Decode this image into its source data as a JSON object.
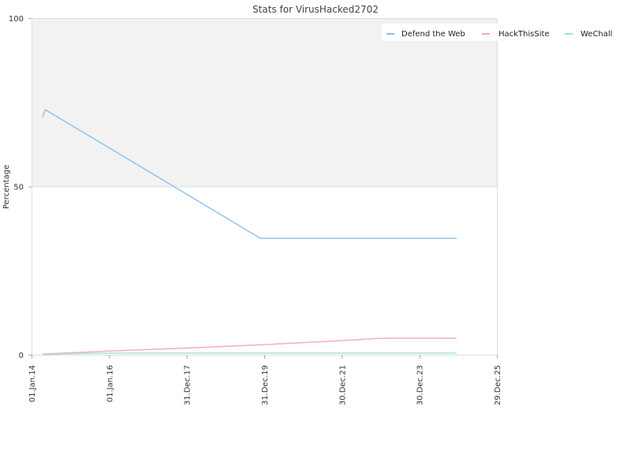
{
  "chart_data": {
    "type": "line",
    "title": "Stats for VirusHacked2702",
    "xlabel": "",
    "ylabel": "Percentage",
    "ylim": [
      0,
      100
    ],
    "yticks": [
      "0",
      "50",
      "100"
    ],
    "xlim": [
      "2014-01-01",
      "2025-12-29"
    ],
    "xticks": [
      {
        "date": "2014-01-01",
        "label": "01.Jan.14"
      },
      {
        "date": "2016-01-01",
        "label": "01.Jan.16"
      },
      {
        "date": "2017-12-31",
        "label": "31.Dec.17"
      },
      {
        "date": "2019-12-31",
        "label": "31.Dec.19"
      },
      {
        "date": "2021-12-30",
        "label": "30.Dec.21"
      },
      {
        "date": "2023-12-30",
        "label": "30.Dec.23"
      },
      {
        "date": "2025-12-29",
        "label": "29.Dec.25"
      }
    ],
    "upper_band": [
      50,
      100
    ],
    "legend_position": "top-right",
    "series": [
      {
        "name": "Defend the Web",
        "color": "#88c0ee",
        "points": [
          {
            "x": "2014-04-15",
            "y": 70.6
          },
          {
            "x": "2014-05-10",
            "y": 72.8
          },
          {
            "x": "2019-11-25",
            "y": 34.6
          },
          {
            "x": "2024-12-15",
            "y": 34.6
          }
        ]
      },
      {
        "name": "HackThisSite",
        "color": "#f2a8c8",
        "points": [
          {
            "x": "2014-04-15",
            "y": 0.2
          },
          {
            "x": "2016-01-01",
            "y": 1.1
          },
          {
            "x": "2017-12-31",
            "y": 2.0
          },
          {
            "x": "2019-12-31",
            "y": 3.0
          },
          {
            "x": "2021-12-30",
            "y": 4.2
          },
          {
            "x": "2023-01-01",
            "y": 4.9
          },
          {
            "x": "2024-12-15",
            "y": 4.9
          }
        ]
      },
      {
        "name": "WeChall",
        "color": "#99e2d8",
        "points": [
          {
            "x": "2014-04-15",
            "y": 0.1
          },
          {
            "x": "2015-06-01",
            "y": 0.4
          },
          {
            "x": "2016-01-01",
            "y": 0.5
          },
          {
            "x": "2024-12-15",
            "y": 0.5
          }
        ]
      }
    ]
  }
}
